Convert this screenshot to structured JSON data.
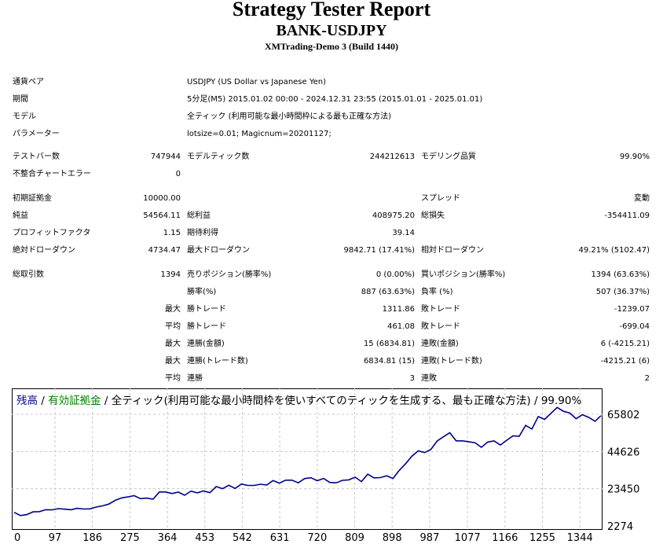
{
  "header": {
    "title": "Strategy Tester Report",
    "symbol": "BANK-USDJPY",
    "server": "XMTrading-Demo 3 (Build 1440)"
  },
  "info": {
    "pair_label": "通貨ペア",
    "pair_value": "USDJPY (US Dollar vs Japanese Yen)",
    "period_label": "期間",
    "period_value": "5分足(M5) 2015.01.02 00:00 - 2024.12.31 23:55 (2015.01.01 - 2025.01.01)",
    "model_label": "モデル",
    "model_value": "全ティック (利用可能な最小時間枠による最も正確な方法)",
    "params_label": "パラメーター",
    "params_value": "lotsize=0.01; Magicnum=20201127;"
  },
  "stats": {
    "bars_label": "テストバー数",
    "bars_value": "747944",
    "ticks_label": "モデルティック数",
    "ticks_value": "244212613",
    "quality_label": "モデリング品質",
    "quality_value": "99.90%",
    "mismatch_label": "不整合チャートエラー",
    "mismatch_value": "0",
    "deposit_label": "初期証拠金",
    "deposit_value": "10000.00",
    "spread_label": "スプレッド",
    "spread_value": "変動",
    "net_label": "純益",
    "net_value": "54564.11",
    "gross_profit_label": "総利益",
    "gross_profit_value": "408975.20",
    "gross_loss_label": "総損失",
    "gross_loss_value": "-354411.09",
    "pf_label": "プロフィットファクタ",
    "pf_value": "1.15",
    "expected_label": "期待利得",
    "expected_value": "39.14",
    "abs_dd_label": "絶対ドローダウン",
    "abs_dd_value": "4734.47",
    "max_dd_label": "最大ドローダウン",
    "max_dd_value": "9842.71 (17.41%)",
    "rel_dd_label": "相対ドローダウン",
    "rel_dd_value": "49.21% (5102.47)",
    "trades_label": "総取引数",
    "trades_value": "1394",
    "short_label": "売りポジション(勝率%)",
    "short_value": "0 (0.00%)",
    "long_label": "買いポジション(勝率%)",
    "long_value": "1394 (63.63%)",
    "win_label": "勝率(%)",
    "win_value": "887 (63.63%)",
    "loss_label": "負率 (%)",
    "loss_value": "507 (36.37%)",
    "max_label": "最大",
    "avg_label": "平均",
    "largest_win_label": "勝トレード",
    "largest_win_value": "1311.86",
    "largest_loss_label": "敗トレード",
    "largest_loss_value": "-1239.07",
    "avg_win_label": "勝トレード",
    "avg_win_value": "461.08",
    "avg_loss_label": "敗トレード",
    "avg_loss_value": "-699.04",
    "cons_win_amt_label": "連勝(金額)",
    "cons_win_amt_value": "15 (6834.81)",
    "cons_loss_amt_label": "連敗(金額)",
    "cons_loss_amt_value": "6 (-4215.21)",
    "cons_win_cnt_label": "連勝(トレード数)",
    "cons_win_cnt_value": "6834.81 (15)",
    "cons_loss_cnt_label": "連敗(トレード数)",
    "cons_loss_cnt_value": "-4215.21 (6)",
    "avg_cons_win_label": "連勝",
    "avg_cons_win_value": "3",
    "avg_cons_loss_label": "連敗",
    "avg_cons_loss_value": "2"
  },
  "chart_data": {
    "type": "line",
    "legend_balance": "残高",
    "legend_sep1": " / ",
    "legend_equity": "有効証拠金",
    "legend_rest": " / 全ティック(利用可能な最小時間枠を使いすべてのティックを生成する、最も正確な方法) / 99.90%",
    "balance_color": "#00008b",
    "equity_color": "#008000",
    "grid": true,
    "x_ticks": [
      "0",
      "97",
      "186",
      "275",
      "364",
      "453",
      "542",
      "631",
      "720",
      "809",
      "898",
      "987",
      "1077",
      "1166",
      "1255",
      "1344"
    ],
    "y_ticks": [
      "65802",
      "44626",
      "23450",
      "2274"
    ],
    "xlim": [
      0,
      1394
    ],
    "ylim": [
      2274,
      65802
    ],
    "series": [
      {
        "values_note": "",
        "x": [
          0,
          15,
          30,
          45,
          60,
          75,
          90,
          105,
          120,
          135,
          150,
          165,
          180,
          195,
          210,
          225,
          240,
          255,
          270,
          285,
          300,
          315,
          330,
          345,
          360,
          375,
          390,
          405,
          420,
          435,
          450,
          465,
          480,
          495,
          510,
          525,
          540,
          555,
          570,
          585,
          600,
          615,
          630,
          645,
          660,
          675,
          690,
          705,
          720,
          735,
          750,
          765,
          780,
          795,
          810,
          825,
          840,
          855,
          870,
          885,
          900,
          915,
          930,
          945,
          960,
          975,
          990,
          1005,
          1020,
          1035,
          1050,
          1065,
          1080,
          1095,
          1110,
          1125,
          1140,
          1155,
          1170,
          1185,
          1200,
          1215,
          1230,
          1245,
          1260,
          1275,
          1290,
          1305,
          1320,
          1335,
          1350,
          1365,
          1380,
          1394
        ],
        "y": [
          10000,
          8200,
          8700,
          10300,
          10400,
          11500,
          11400,
          12100,
          11800,
          11500,
          12300,
          11900,
          12000,
          13000,
          13700,
          14700,
          16800,
          18200,
          18800,
          19500,
          17800,
          18100,
          17500,
          21600,
          21600,
          20700,
          21500,
          19700,
          22100,
          21100,
          22200,
          21200,
          24700,
          23500,
          25400,
          23600,
          26100,
          25300,
          25300,
          26000,
          25600,
          28100,
          26600,
          28300,
          28300,
          26800,
          29200,
          29700,
          28000,
          29300,
          27000,
          26800,
          28200,
          28500,
          30000,
          27500,
          31700,
          29600,
          29800,
          30800,
          29300,
          33900,
          37700,
          42000,
          45000,
          44000,
          45800,
          50600,
          53000,
          55300,
          50700,
          50700,
          50200,
          49600,
          47000,
          50000,
          50700,
          48300,
          51000,
          53500,
          53300,
          59500,
          57400,
          64500,
          62900,
          66300,
          69700,
          67500,
          66500,
          63300,
          65600,
          64000,
          61800,
          65000
        ]
      }
    ]
  }
}
